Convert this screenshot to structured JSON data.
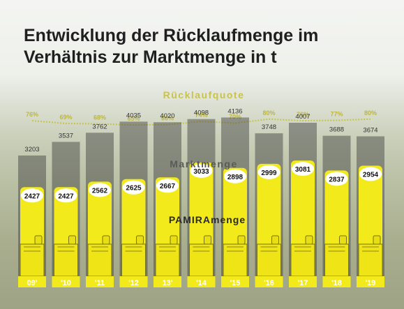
{
  "title_line1": "Entwicklung der Rücklaufmenge im",
  "title_line2": "Verhältnis zur Marktmenge in t",
  "colors": {
    "accent": "#f2ea1a",
    "dark_bar": "#3a3a3a",
    "rate_line": "#c9c34a"
  },
  "chart_data": {
    "type": "bar",
    "categories": [
      "09'",
      "'10",
      "'11",
      "'12",
      "13'",
      "'14",
      "'15",
      "'16",
      "'17",
      "'18",
      "'19"
    ],
    "series": [
      {
        "name": "Marktmenge",
        "values": [
          3203,
          3537,
          3762,
          4035,
          4020,
          4098,
          4136,
          3748,
          4007,
          3688,
          3674
        ]
      },
      {
        "name": "PAMIRAmenge",
        "values": [
          2427,
          2427,
          2562,
          2625,
          2667,
          3033,
          2898,
          2999,
          3081,
          2837,
          2954
        ]
      }
    ],
    "ruecklaufquote": {
      "name": "Rücklaufquote",
      "values": [
        76,
        69,
        68,
        65,
        66,
        74,
        70,
        80,
        76,
        77,
        80
      ],
      "labels": [
        "76%",
        "69%",
        "68%",
        "65%",
        "66%",
        "74%",
        "70%",
        "80%",
        "76%",
        "77%",
        "80%"
      ]
    },
    "ylim": [
      0,
      4200
    ]
  }
}
